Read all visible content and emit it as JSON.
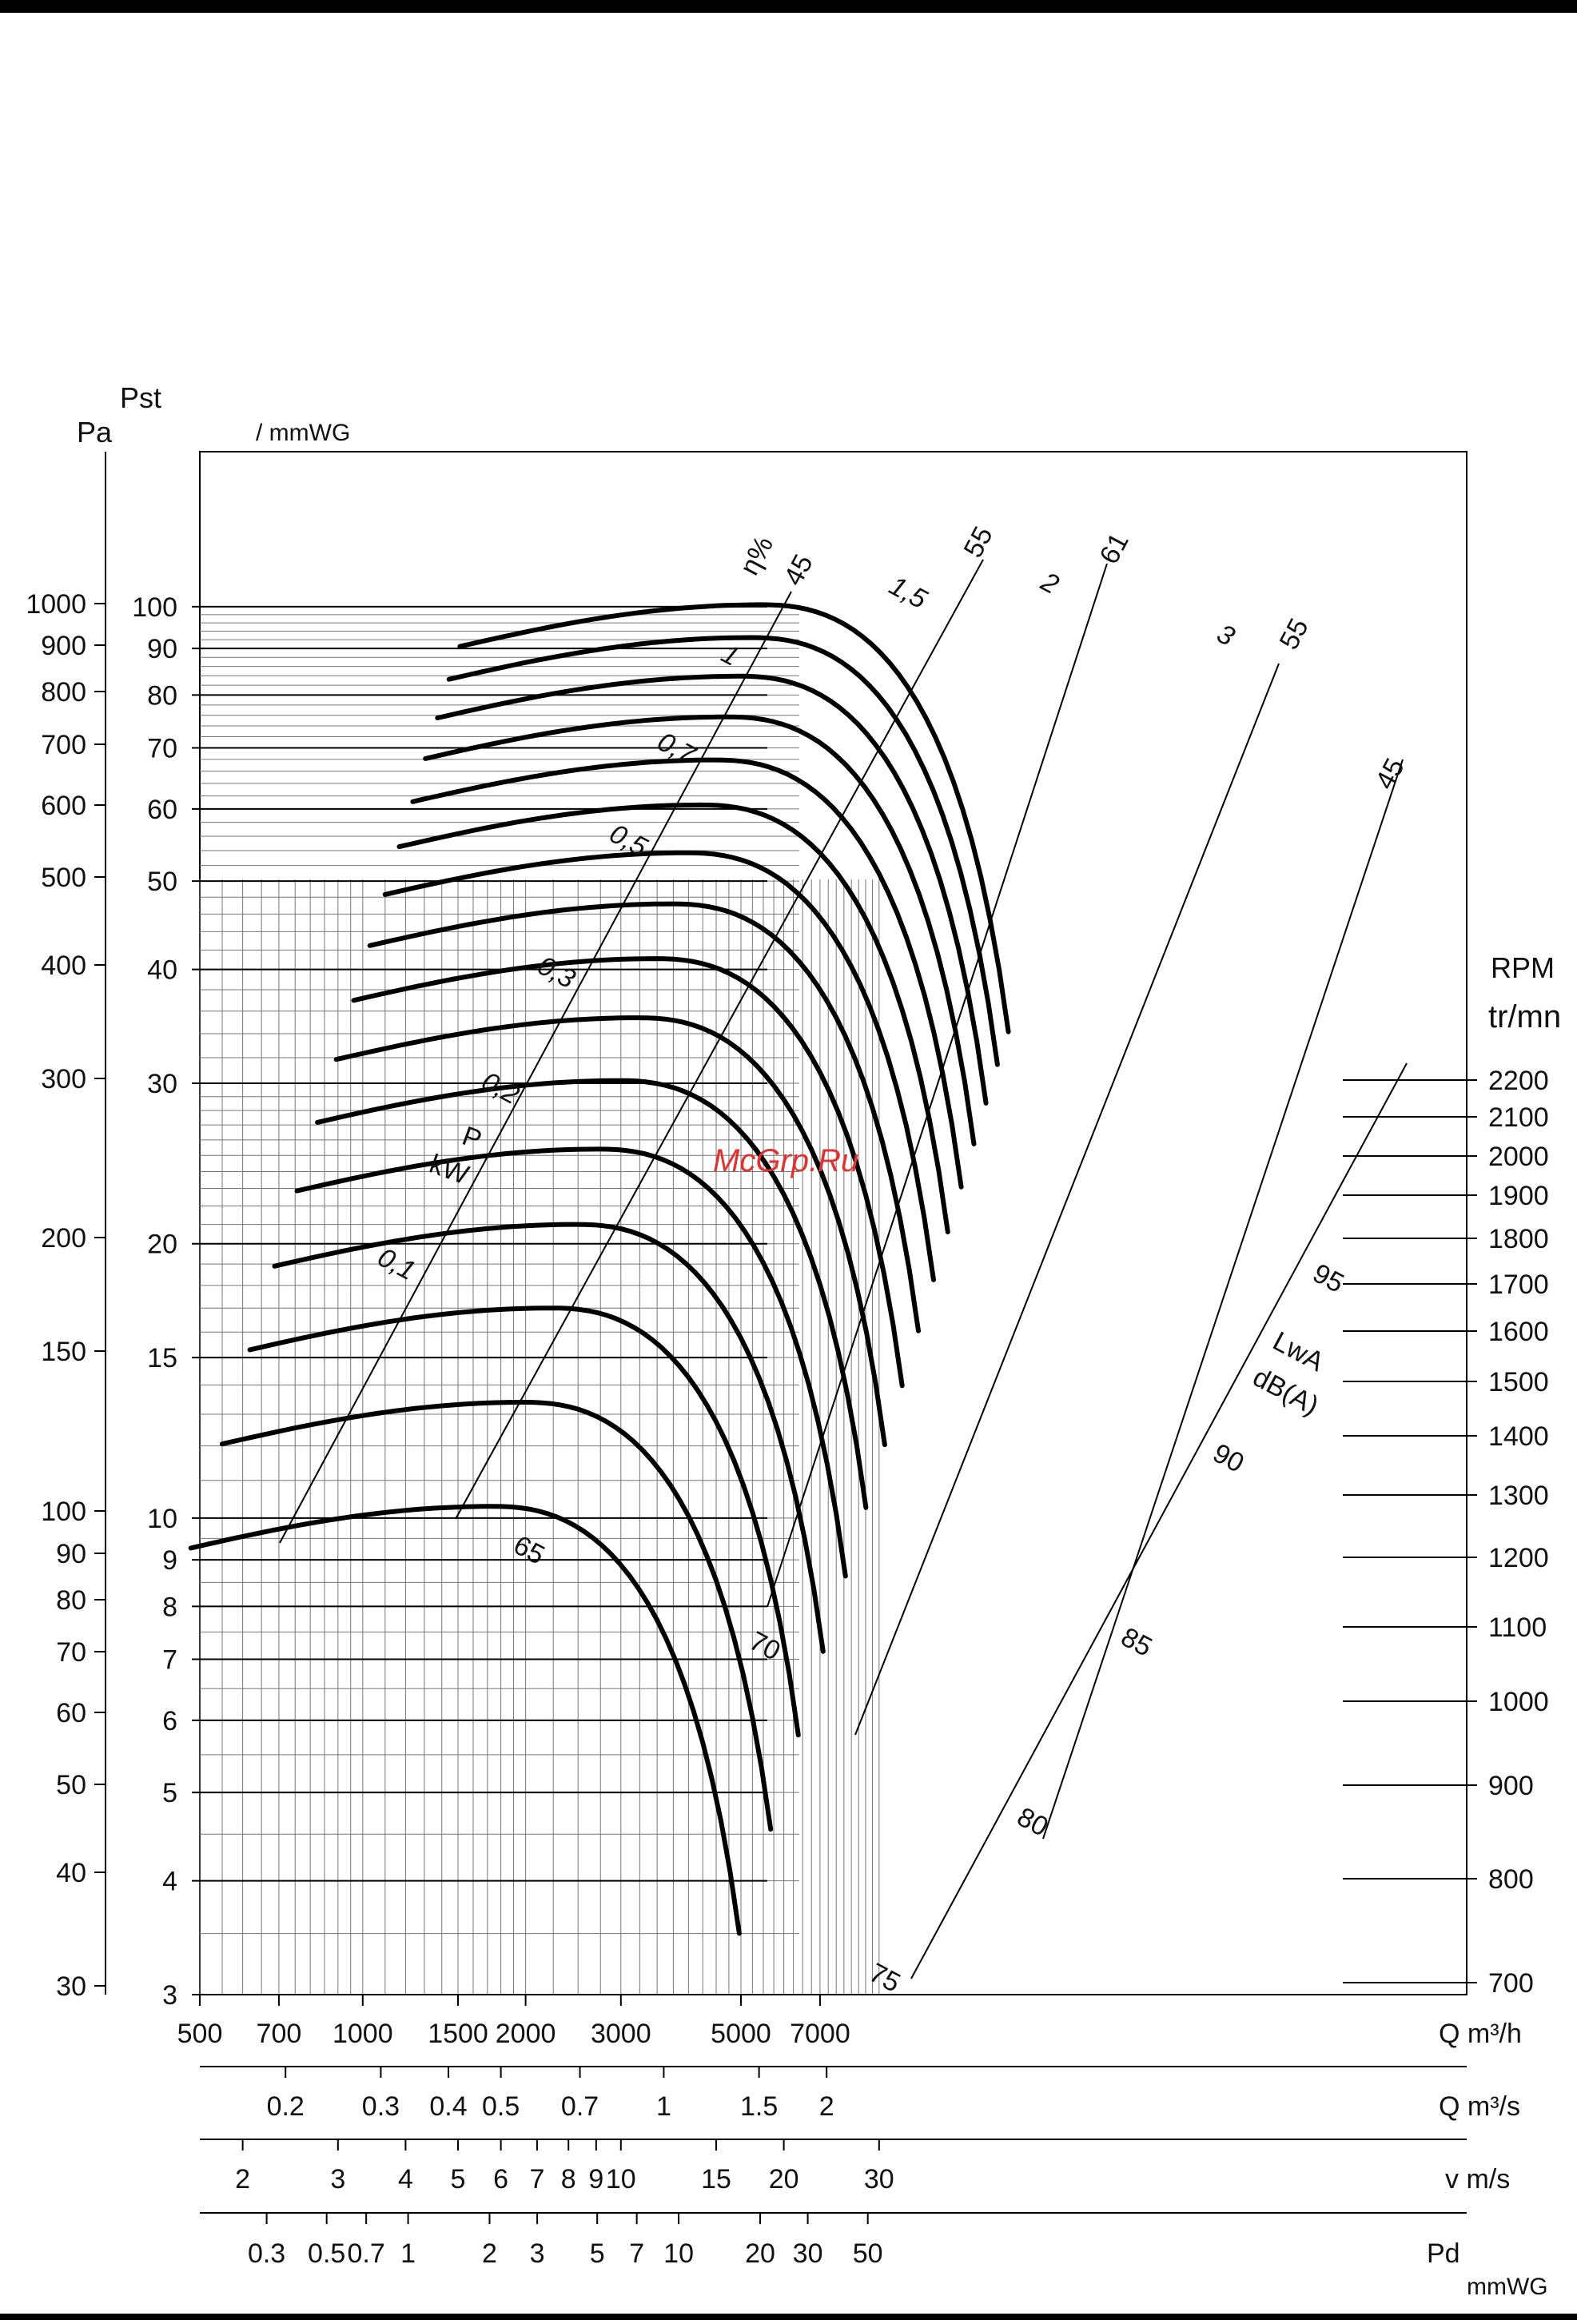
{
  "chart_data": {
    "type": "line",
    "title": "",
    "labels": {
      "pst": "Pst",
      "pa": "Pa",
      "mmwg_top": "/ mmWG",
      "mmwg_bottom": "mmWG",
      "eta": "η%",
      "p": "P",
      "kw": "kW",
      "lwa": "LwA",
      "dba": "dB(A)",
      "rpm": "RPM",
      "trmn": "tr/mn",
      "q_m3h": "Q m³/h",
      "q_m3s": "Q m³/s",
      "v_ms": "v m/s",
      "pd": "Pd",
      "watermark": "McGrp.Ru"
    },
    "y_pa_ticks": [
      "1000",
      "900",
      "800",
      "700",
      "600",
      "500",
      "400",
      "300",
      "200",
      "150",
      "100",
      "90",
      "80",
      "70",
      "60",
      "50",
      "40",
      "30"
    ],
    "y_mmwg_ticks": [
      "100",
      "90",
      "80",
      "70",
      "60",
      "50",
      "40",
      "30",
      "20",
      "15",
      "10",
      "9",
      "8",
      "7",
      "6",
      "5",
      "4",
      "3"
    ],
    "x_qm3h_ticks": [
      "500",
      "700",
      "1000",
      "1500",
      "2000",
      "3000",
      "5000",
      "7000"
    ],
    "x_qm3s_ticks": [
      "0.2",
      "0.3",
      "0.4",
      "0.5",
      "0.7",
      "1",
      "1.5",
      "2"
    ],
    "x_vms_ticks": [
      "2",
      "3",
      "4",
      "5",
      "6",
      "7",
      "8",
      "9",
      "10",
      "15",
      "20",
      "30"
    ],
    "x_pd_ticks": [
      "0.3",
      "0.5",
      "0.7",
      "1",
      "2",
      "3",
      "5",
      "7",
      "10",
      "20",
      "30",
      "50"
    ],
    "rpm_ticks": [
      "2200",
      "2100",
      "2000",
      "1900",
      "1800",
      "1700",
      "1600",
      "1500",
      "1400",
      "1300",
      "1200",
      "1100",
      "1000",
      "900",
      "800",
      "700"
    ],
    "efficiency_labels": [
      "45",
      "55",
      "61",
      "55",
      "45"
    ],
    "power_labels": [
      "0,1",
      "0,2",
      "0,3",
      "0,5",
      "0,7",
      "1",
      "1,5",
      "2",
      "3"
    ],
    "lwa_labels": [
      "65",
      "70",
      "75",
      "80",
      "85",
      "90",
      "95"
    ],
    "xlim_m3h": [
      500,
      10000
    ],
    "ylim_mmwg": [
      3,
      150
    ],
    "scale": "log-log",
    "series": [
      {
        "rpm": "700",
        "pmax_mmwg": 10.3
      },
      {
        "rpm": "800",
        "pmax_mmwg": 13.4
      },
      {
        "rpm": "900",
        "pmax_mmwg": 17.0
      },
      {
        "rpm": "1000",
        "pmax_mmwg": 21.0
      },
      {
        "rpm": "1100",
        "pmax_mmwg": 25.4
      },
      {
        "rpm": "1200",
        "pmax_mmwg": 30.2
      },
      {
        "rpm": "1300",
        "pmax_mmwg": 35.4
      },
      {
        "rpm": "1400",
        "pmax_mmwg": 41.1
      },
      {
        "rpm": "1500",
        "pmax_mmwg": 47.2
      },
      {
        "rpm": "1600",
        "pmax_mmwg": 53.7
      },
      {
        "rpm": "1700",
        "pmax_mmwg": 60.6
      },
      {
        "rpm": "1800",
        "pmax_mmwg": 67.9
      },
      {
        "rpm": "1900",
        "pmax_mmwg": 75.7
      },
      {
        "rpm": "2000",
        "pmax_mmwg": 83.9
      },
      {
        "rpm": "2100",
        "pmax_mmwg": 92.5
      },
      {
        "rpm": "2200",
        "pmax_mmwg": 100.5
      }
    ]
  }
}
